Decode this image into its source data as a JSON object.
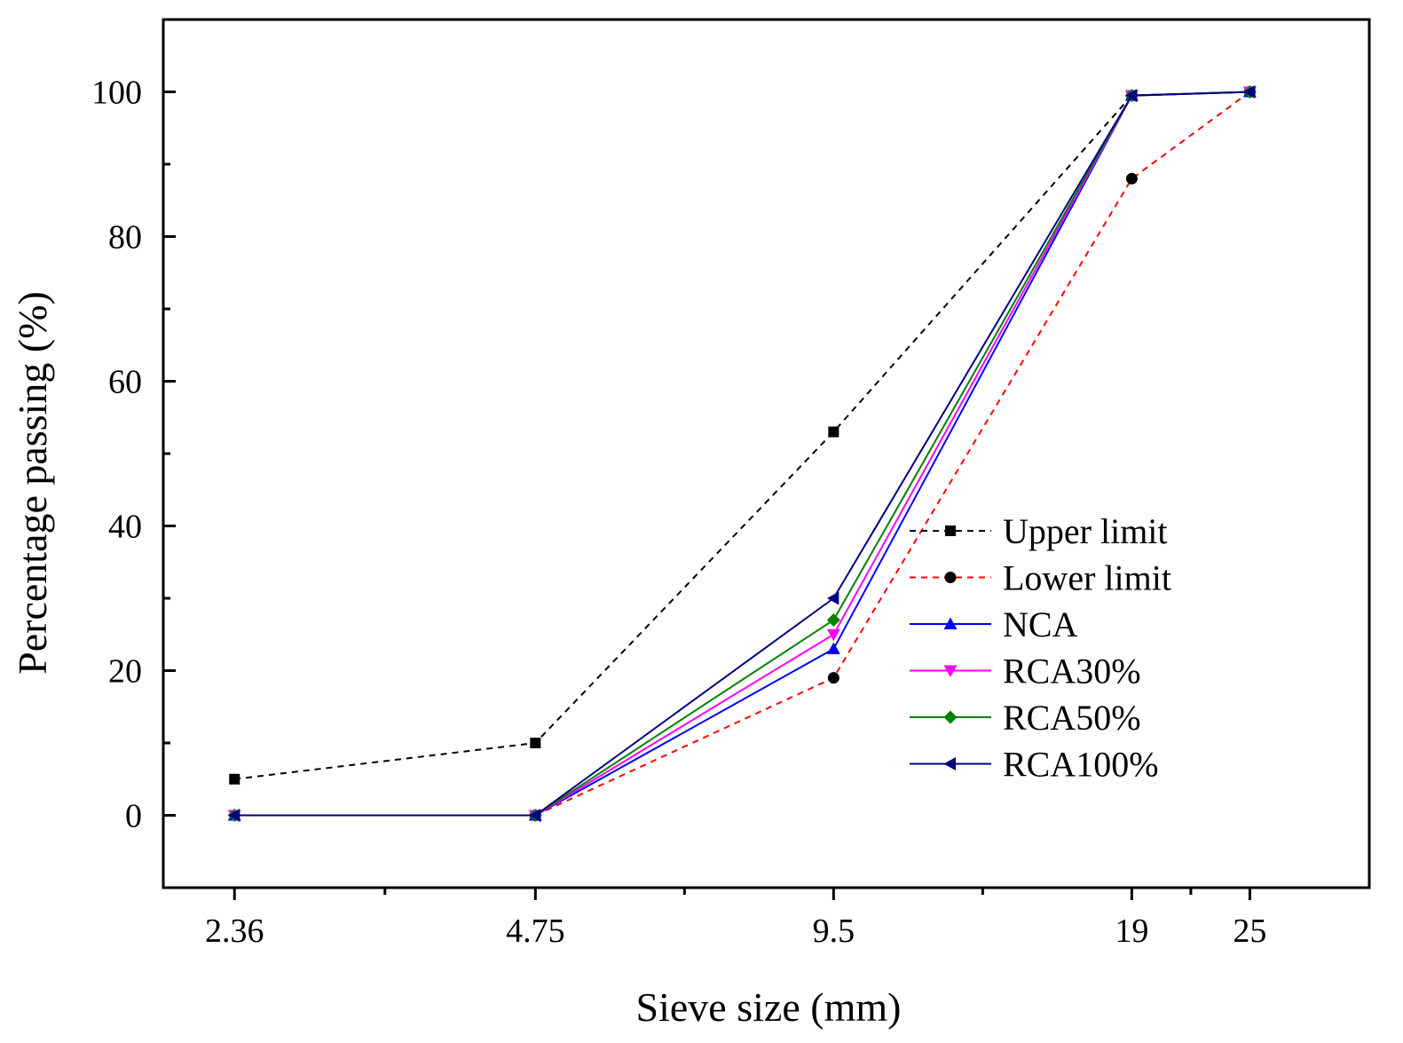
{
  "chart_data": {
    "type": "line",
    "xlabel": "Sieve size (mm)",
    "ylabel": "Percentage passing (%)",
    "x_scale": "log",
    "xlim": [
      2.0,
      33.0
    ],
    "ylim": [
      -10,
      110
    ],
    "x": [
      2.36,
      4.75,
      9.5,
      19,
      25
    ],
    "x_tick_labels": [
      "2.36",
      "4.75",
      "9.5",
      "19",
      "25"
    ],
    "y_ticks": [
      0,
      20,
      40,
      60,
      80,
      100
    ],
    "y_tick_labels": [
      "0",
      "20",
      "40",
      "60",
      "80",
      "100"
    ],
    "legend_position": "bottom-right",
    "series": [
      {
        "name": "Upper limit",
        "values": [
          5,
          10,
          53,
          99.5,
          100
        ],
        "color": "#000000",
        "dash": "dashed",
        "marker": "square"
      },
      {
        "name": "Lower limit",
        "values": [
          null,
          0,
          19,
          88,
          100
        ],
        "color": "#ff0000",
        "dash": "dashed",
        "marker": "circle",
        "marker_color": "#000000"
      },
      {
        "name": "NCA",
        "values": [
          0,
          0,
          23,
          99.5,
          100
        ],
        "color": "#0000ff",
        "dash": "solid",
        "marker": "triangle-up"
      },
      {
        "name": "RCA30%",
        "values": [
          0,
          0,
          25,
          99.5,
          100
        ],
        "color": "#ff00ff",
        "dash": "solid",
        "marker": "triangle-down"
      },
      {
        "name": "RCA50%",
        "values": [
          0,
          0,
          27,
          99.5,
          100
        ],
        "color": "#008000",
        "dash": "solid",
        "marker": "diamond"
      },
      {
        "name": "RCA100%",
        "values": [
          0,
          0,
          30,
          99.5,
          100
        ],
        "color": "#000080",
        "dash": "solid",
        "marker": "triangle-left"
      }
    ]
  }
}
